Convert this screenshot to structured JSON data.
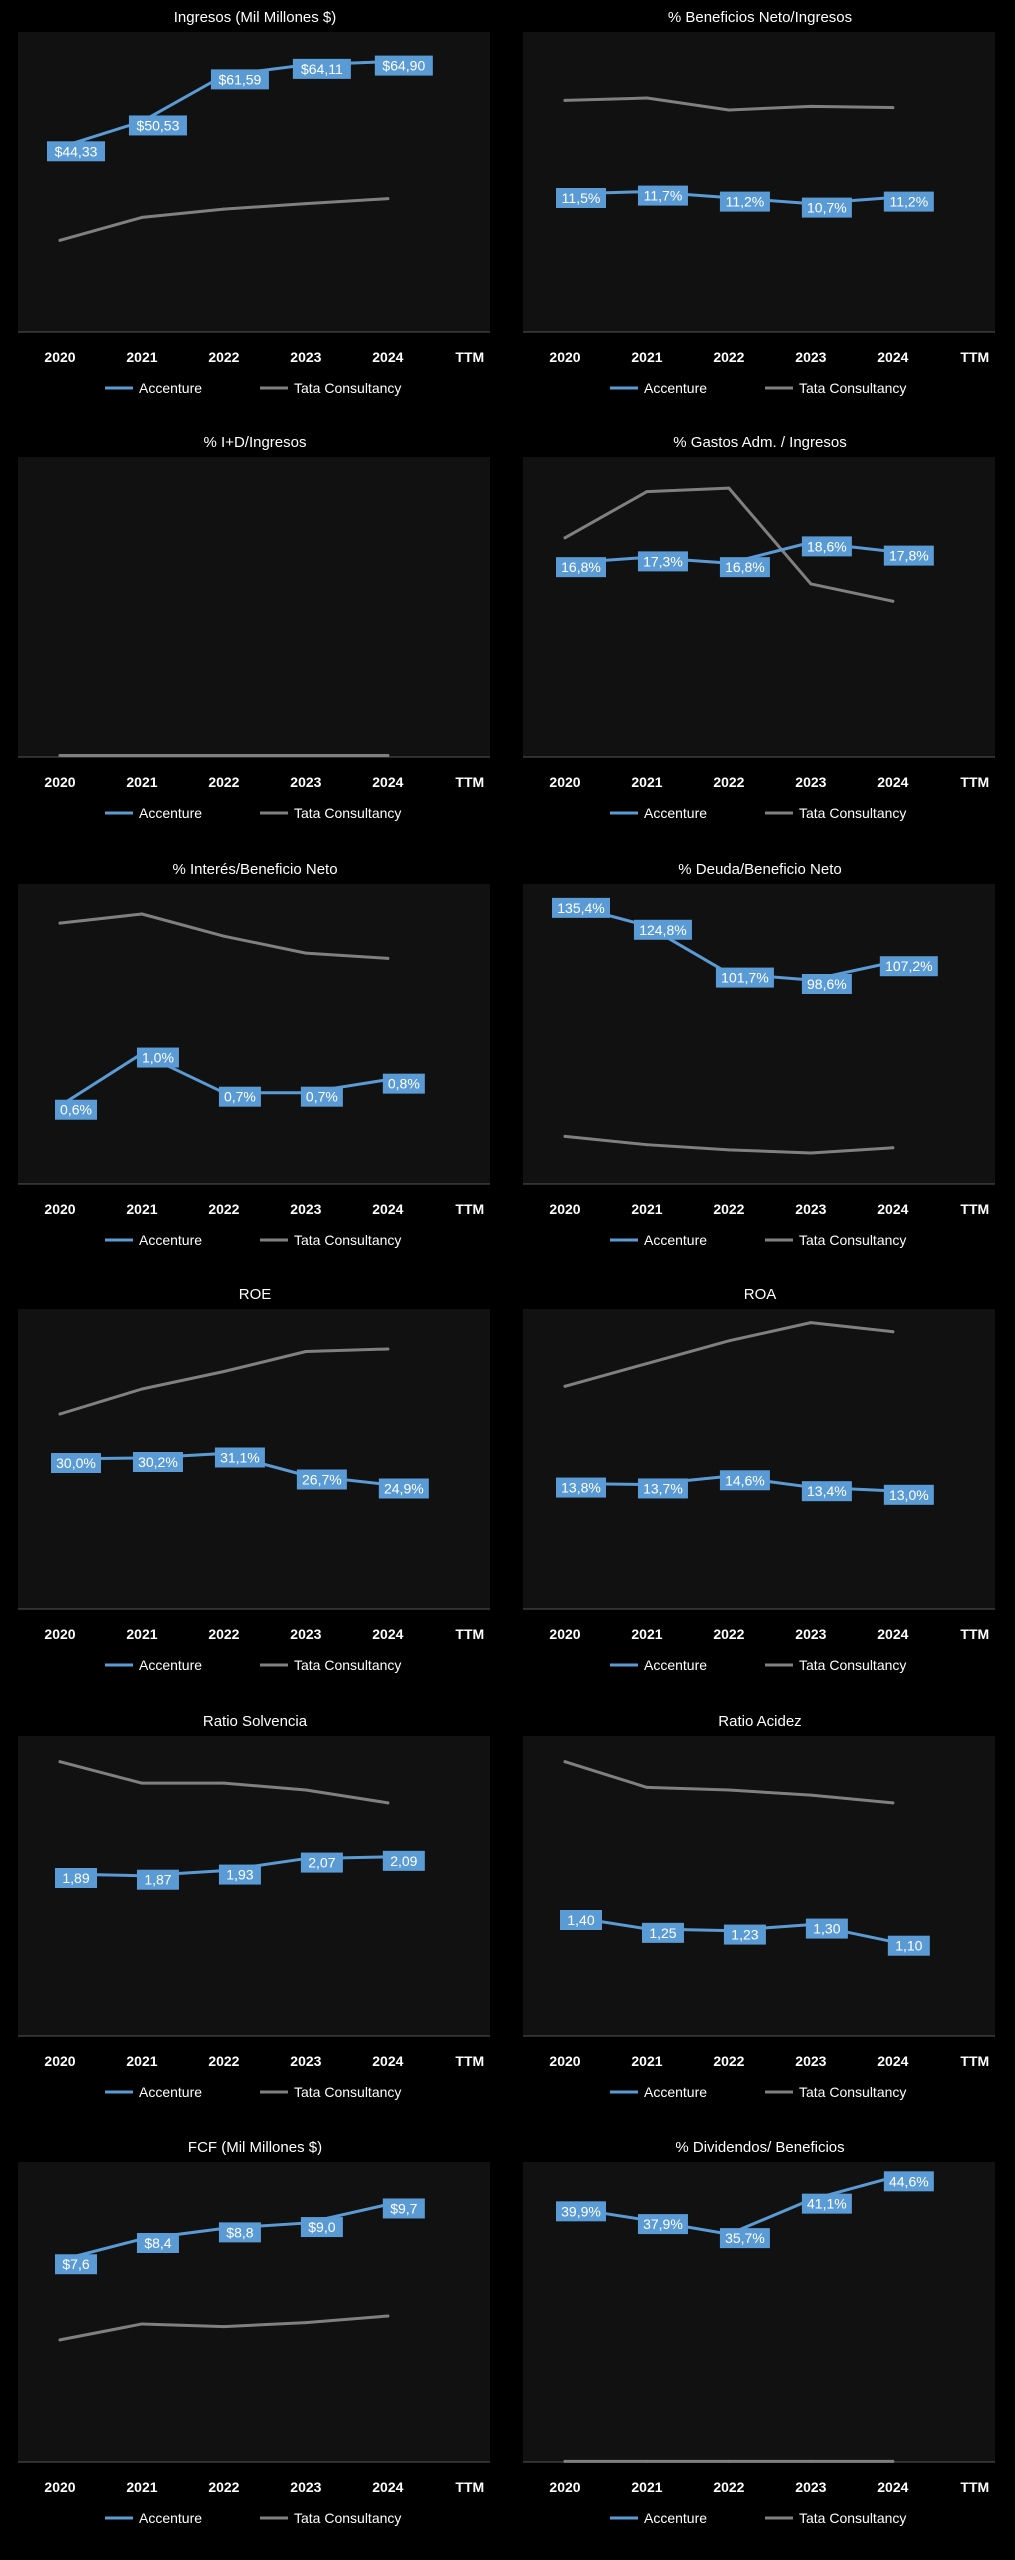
{
  "colors": {
    "background": "#000000",
    "plot_area": "#111111",
    "accenture": "#5b9bd5",
    "tata": "#808080",
    "label_bg": "#5b9bd5",
    "text": "#ffffff"
  },
  "chart_data": [
    {
      "type": "line",
      "title": "Ingresos (Mil Millones $)",
      "categories": [
        "2020",
        "2021",
        "2022",
        "2023",
        "2024",
        "TTM"
      ],
      "series": [
        {
          "name": "Accenture",
          "values": [
            44.33,
            50.53,
            61.59,
            64.11,
            64.9,
            null
          ],
          "labels": [
            "$44,33",
            "$50,53",
            "$61,59",
            "$64,11",
            "$64,90",
            ""
          ]
        },
        {
          "name": "Tata Consultancy",
          "values": [
            22.0,
            27.5,
            29.5,
            30.8,
            32.0,
            null
          ]
        }
      ],
      "ylim": [
        0,
        72
      ]
    },
    {
      "type": "line",
      "title": "% Beneficios Neto/Ingresos",
      "categories": [
        "2020",
        "2021",
        "2022",
        "2023",
        "2024",
        "TTM"
      ],
      "series": [
        {
          "name": "Accenture",
          "values": [
            11.5,
            11.7,
            11.2,
            10.7,
            11.2,
            null
          ],
          "labels": [
            "11,5%",
            "11,7%",
            "11,2%",
            "10,7%",
            "11,2%",
            ""
          ]
        },
        {
          "name": "Tata Consultancy",
          "values": [
            19.3,
            19.5,
            18.5,
            18.8,
            18.7,
            null
          ]
        }
      ],
      "ylim": [
        0,
        25
      ]
    },
    {
      "type": "line",
      "title": "% I+D/Ingresos",
      "categories": [
        "2020",
        "2021",
        "2022",
        "2023",
        "2024",
        "TTM"
      ],
      "series": [
        {
          "name": "Accenture",
          "values": [
            null,
            null,
            null,
            null,
            null,
            null
          ],
          "labels": [
            "",
            "",
            "",
            "",
            "",
            ""
          ]
        },
        {
          "name": "Tata Consultancy",
          "values": [
            0.05,
            0.05,
            0.05,
            0.05,
            0.05,
            null
          ]
        }
      ],
      "ylim": [
        0,
        10
      ]
    },
    {
      "type": "line",
      "title": "% Gastos Adm. / Ingresos",
      "categories": [
        "2020",
        "2021",
        "2022",
        "2023",
        "2024",
        "TTM"
      ],
      "series": [
        {
          "name": "Accenture",
          "values": [
            16.8,
            17.3,
            16.8,
            18.6,
            17.8,
            null
          ],
          "labels": [
            "16,8%",
            "17,3%",
            "16,8%",
            "18,6%",
            "17,8%",
            ""
          ]
        },
        {
          "name": "Tata Consultancy",
          "values": [
            19.0,
            23.0,
            23.3,
            15.0,
            13.5,
            null
          ]
        }
      ],
      "ylim": [
        0,
        26
      ]
    },
    {
      "type": "line",
      "title": "% Interés/Beneficio Neto",
      "categories": [
        "2020",
        "2021",
        "2022",
        "2023",
        "2024",
        "TTM"
      ],
      "series": [
        {
          "name": "Accenture",
          "values": [
            0.6,
            1.0,
            0.7,
            0.7,
            0.8,
            null
          ],
          "labels": [
            "0,6%",
            "1,0%",
            "0,7%",
            "0,7%",
            "0,8%",
            ""
          ]
        },
        {
          "name": "Tata Consultancy",
          "values": [
            2.0,
            2.07,
            1.9,
            1.77,
            1.73,
            null
          ]
        }
      ],
      "ylim": [
        0,
        2.3
      ]
    },
    {
      "type": "line",
      "title": "% Deuda/Beneficio Neto",
      "categories": [
        "2020",
        "2021",
        "2022",
        "2023",
        "2024",
        "TTM"
      ],
      "series": [
        {
          "name": "Accenture",
          "values": [
            135.4,
            124.8,
            101.7,
            98.6,
            107.2,
            null
          ],
          "labels": [
            "135,4%",
            "124,8%",
            "101,7%",
            "98,6%",
            "107,2%",
            ""
          ]
        },
        {
          "name": "Tata Consultancy",
          "values": [
            23.0,
            19.0,
            16.5,
            15.0,
            17.5,
            null
          ]
        }
      ],
      "ylim": [
        0,
        145
      ]
    },
    {
      "type": "line",
      "title": "ROE",
      "categories": [
        "2020",
        "2021",
        "2022",
        "2023",
        "2024",
        "TTM"
      ],
      "series": [
        {
          "name": "Accenture",
          "values": [
            30.0,
            30.2,
            31.1,
            26.7,
            24.9,
            null
          ],
          "labels": [
            "30,0%",
            "30,2%",
            "31,1%",
            "26,7%",
            "24,9%",
            ""
          ]
        },
        {
          "name": "Tata Consultancy",
          "values": [
            39.0,
            44.0,
            47.5,
            51.5,
            52.0,
            null
          ]
        }
      ],
      "ylim": [
        0,
        60
      ]
    },
    {
      "type": "line",
      "title": "ROA",
      "categories": [
        "2020",
        "2021",
        "2022",
        "2023",
        "2024",
        "TTM"
      ],
      "series": [
        {
          "name": "Accenture",
          "values": [
            13.8,
            13.7,
            14.6,
            13.4,
            13.0,
            null
          ],
          "labels": [
            "13,8%",
            "13,7%",
            "14,6%",
            "13,4%",
            "13,0%",
            ""
          ]
        },
        {
          "name": "Tata Consultancy",
          "values": [
            24.5,
            27.0,
            29.5,
            31.5,
            30.5,
            null
          ]
        }
      ],
      "ylim": [
        0,
        33
      ]
    },
    {
      "type": "line",
      "title": "Ratio Solvencia",
      "categories": [
        "2020",
        "2021",
        "2022",
        "2023",
        "2024",
        "TTM"
      ],
      "series": [
        {
          "name": "Accenture",
          "values": [
            1.89,
            1.87,
            1.93,
            2.07,
            2.09,
            null
          ],
          "labels": [
            "1,89",
            "1,87",
            "1,93",
            "2,07",
            "2,09",
            ""
          ]
        },
        {
          "name": "Tata Consultancy",
          "values": [
            3.2,
            2.95,
            2.95,
            2.87,
            2.72,
            null
          ]
        }
      ],
      "ylim": [
        0,
        3.5
      ]
    },
    {
      "type": "line",
      "title": "Ratio Acidez",
      "categories": [
        "2020",
        "2021",
        "2022",
        "2023",
        "2024",
        "TTM"
      ],
      "series": [
        {
          "name": "Accenture",
          "values": [
            1.4,
            1.25,
            1.23,
            1.3,
            1.1,
            null
          ],
          "labels": [
            "1,40",
            "1,25",
            "1,23",
            "1,30",
            "1,10",
            ""
          ]
        },
        {
          "name": "Tata Consultancy",
          "values": [
            3.2,
            2.9,
            2.87,
            2.81,
            2.72,
            null
          ]
        }
      ],
      "ylim": [
        0,
        3.5
      ]
    },
    {
      "type": "line",
      "title": "FCF (Mil Millones $)",
      "categories": [
        "2020",
        "2021",
        "2022",
        "2023",
        "2024",
        "TTM"
      ],
      "series": [
        {
          "name": "Accenture",
          "values": [
            7.6,
            8.4,
            8.8,
            9.0,
            9.7,
            null
          ],
          "labels": [
            "$7,6",
            "$8,4",
            "$8,8",
            "$9,0",
            "$9,7",
            ""
          ]
        },
        {
          "name": "Tata Consultancy",
          "values": [
            4.6,
            5.2,
            5.1,
            5.25,
            5.5,
            null
          ]
        }
      ],
      "ylim": [
        0,
        11.3
      ]
    },
    {
      "type": "line",
      "title": "% Dividendos/ Beneficios",
      "categories": [
        "2020",
        "2021",
        "2022",
        "2023",
        "2024",
        "TTM"
      ],
      "series": [
        {
          "name": "Accenture",
          "values": [
            39.9,
            37.9,
            35.7,
            41.1,
            44.6,
            null
          ],
          "labels": [
            "39,9%",
            "37,9%",
            "35,7%",
            "41,1%",
            "44,6%",
            ""
          ]
        },
        {
          "name": "Tata Consultancy",
          "values": [
            0.1,
            0.1,
            0.1,
            0.1,
            0.1,
            null
          ]
        }
      ],
      "ylim": [
        0,
        47
      ]
    }
  ]
}
